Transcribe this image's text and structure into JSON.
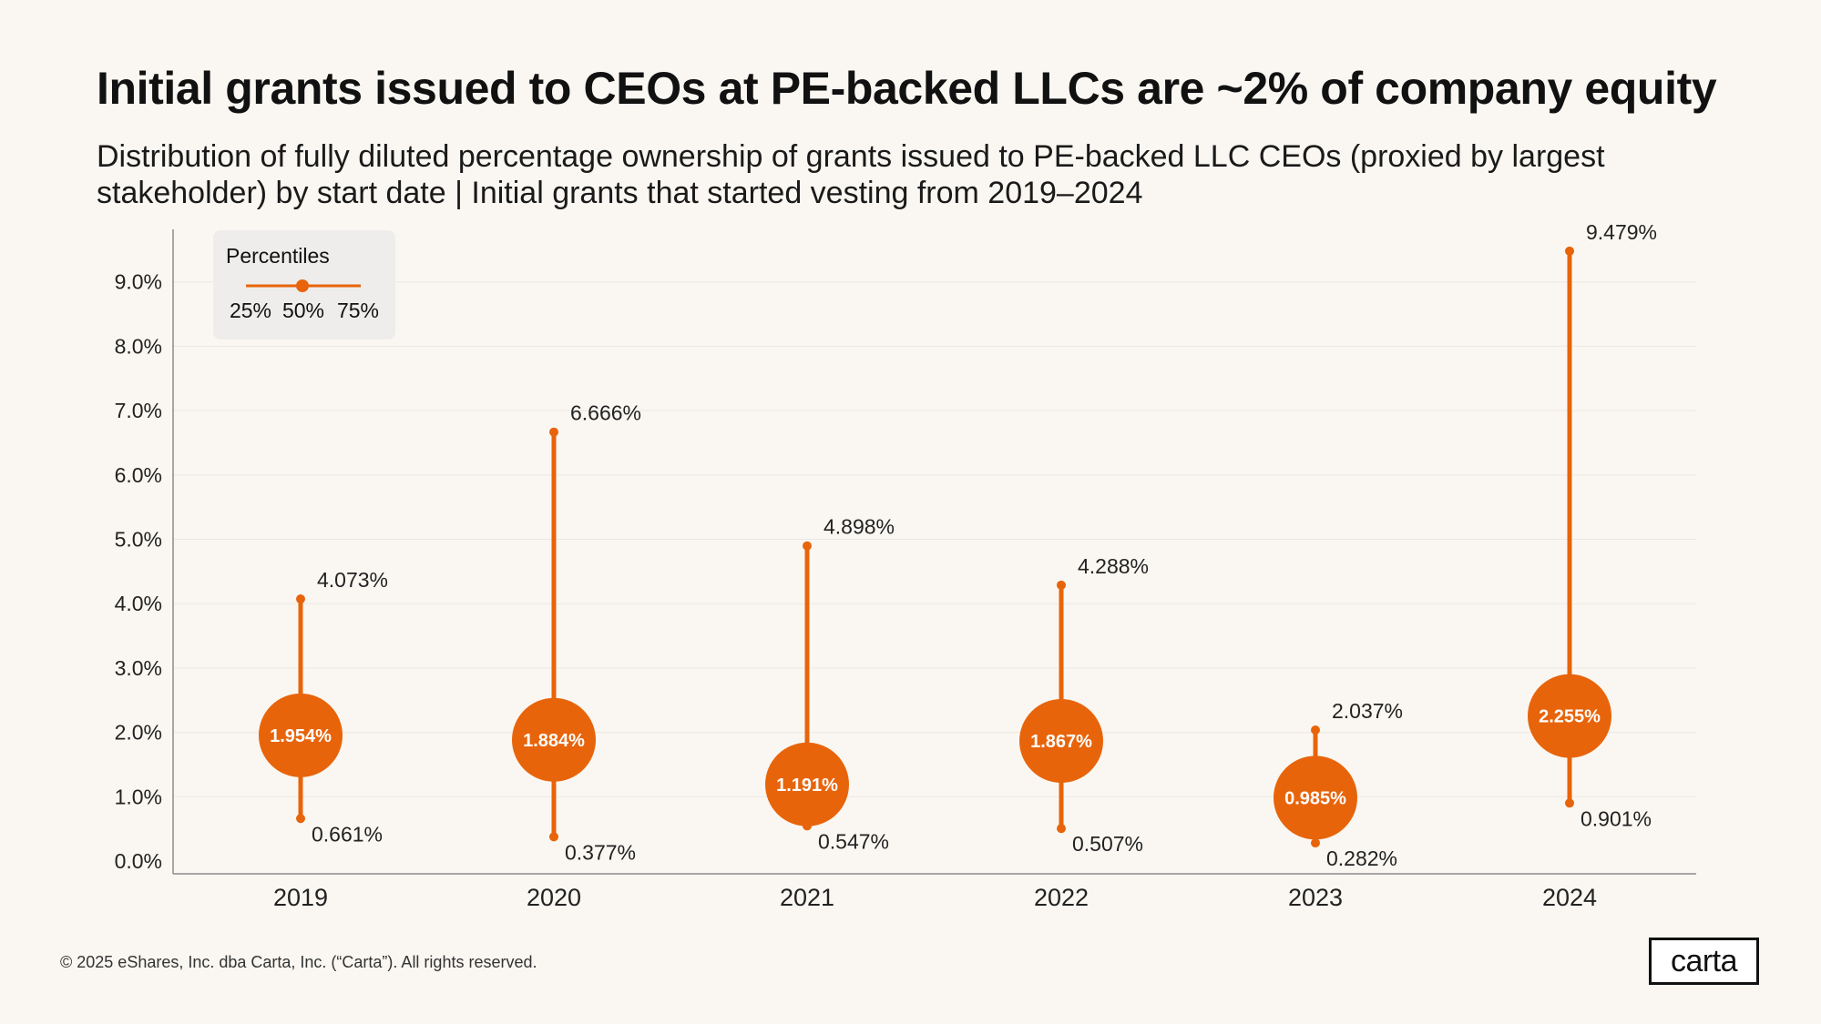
{
  "title": "Initial grants issued to CEOs at PE-backed LLCs are ~2% of company equity",
  "subtitle": "Distribution of fully diluted percentage ownership of grants issued to PE-backed LLC CEOs (proxied by largest stakeholder) by start date | Initial grants that started vesting from 2019–2024",
  "footer": "© 2025 eShares, Inc. dba Carta, Inc. (“Carta”). All rights reserved.",
  "logo": "carta",
  "colors": {
    "accent": "#E8640A",
    "background": "#FAF7F2",
    "legend_bg": "#EEEDEB",
    "gridline": "#ECE8E2",
    "axis": "#8C8C8C"
  },
  "chart_data": {
    "type": "dot-range",
    "title": "Initial grants issued to CEOs at PE-backed LLCs are ~2% of company equity",
    "xlabel": "",
    "ylabel": "",
    "categories": [
      "2019",
      "2020",
      "2021",
      "2022",
      "2023",
      "2024"
    ],
    "series": [
      {
        "name": "25%",
        "values": [
          0.661,
          0.377,
          0.547,
          0.507,
          0.282,
          0.901
        ]
      },
      {
        "name": "50%",
        "values": [
          1.954,
          1.884,
          1.191,
          1.867,
          0.985,
          2.255
        ]
      },
      {
        "name": "75%",
        "values": [
          4.073,
          6.666,
          4.898,
          4.288,
          2.037,
          9.479
        ]
      }
    ],
    "value_labels": {
      "p25": [
        "0.661%",
        "0.377%",
        "0.547%",
        "0.507%",
        "0.282%",
        "0.901%"
      ],
      "p50": [
        "1.954%",
        "1.884%",
        "1.191%",
        "1.867%",
        "0.985%",
        "2.255%"
      ],
      "p75": [
        "4.073%",
        "6.666%",
        "4.898%",
        "4.288%",
        "2.037%",
        "9.479%"
      ]
    },
    "yticks": [
      0,
      1,
      2,
      3,
      4,
      5,
      6,
      7,
      8,
      9
    ],
    "ytick_labels": [
      "0.0%",
      "1.0%",
      "2.0%",
      "3.0%",
      "4.0%",
      "5.0%",
      "6.0%",
      "7.0%",
      "8.0%",
      "9.0%"
    ],
    "ylim": [
      0,
      10
    ],
    "grid": true,
    "legend": {
      "title": "Percentiles",
      "labels": [
        "25%",
        "50%",
        "75%"
      ],
      "placement": "top-left"
    }
  }
}
